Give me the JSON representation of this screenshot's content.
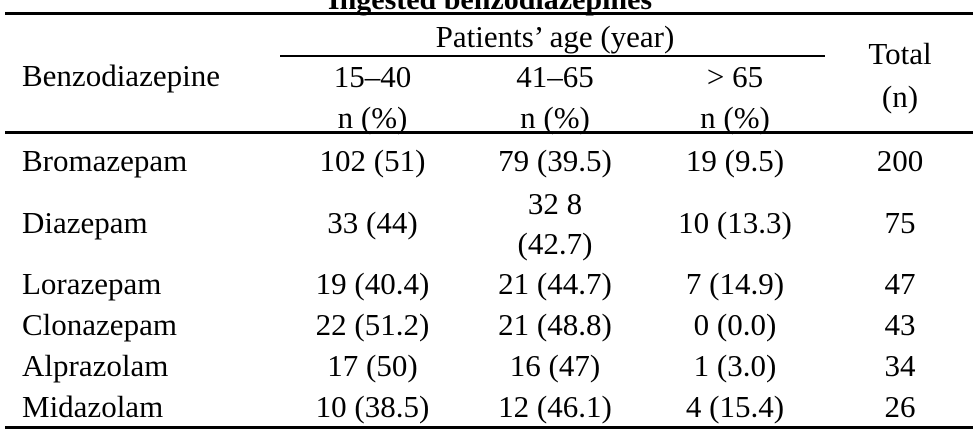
{
  "table": {
    "caption": "Ingested benzodiazepines",
    "header": {
      "stub": "Benzodiazepine",
      "group_label": "Patients’ age (year)",
      "columns": [
        {
          "range": "15–40",
          "unit": "n (%)"
        },
        {
          "range": "41–65",
          "unit": "n (%)"
        },
        {
          "range": "> 65",
          "unit": "n (%)"
        }
      ],
      "total_line1": "Total",
      "total_line2": "(n)"
    },
    "rows": [
      {
        "name": "Bromazepam",
        "c1": "102 (51)",
        "c2": "79 (39.5)",
        "c3": "19 (9.5)",
        "total": "200"
      },
      {
        "name": "Diazepam",
        "c1": "33 (44)",
        "c2_line1": "32 8",
        "c2_line2": "(42.7)",
        "c3": "10 (13.3)",
        "total": "75"
      },
      {
        "name": "Lorazepam",
        "c1": "19 (40.4)",
        "c2": "21 (44.7)",
        "c3": "7 (14.9)",
        "total": "47"
      },
      {
        "name": "Clonazepam",
        "c1": "22 (51.2)",
        "c2": "21 (48.8)",
        "c3": "0 (0.0)",
        "total": "43"
      },
      {
        "name": "Alprazolam",
        "c1": "17 (50)",
        "c2": "16 (47)",
        "c3": "1 (3.0)",
        "total": "34"
      },
      {
        "name": "Midazolam",
        "c1": "10 (38.5)",
        "c2": "12 (46.1)",
        "c3": "4 (15.4)",
        "total": "26"
      }
    ]
  }
}
